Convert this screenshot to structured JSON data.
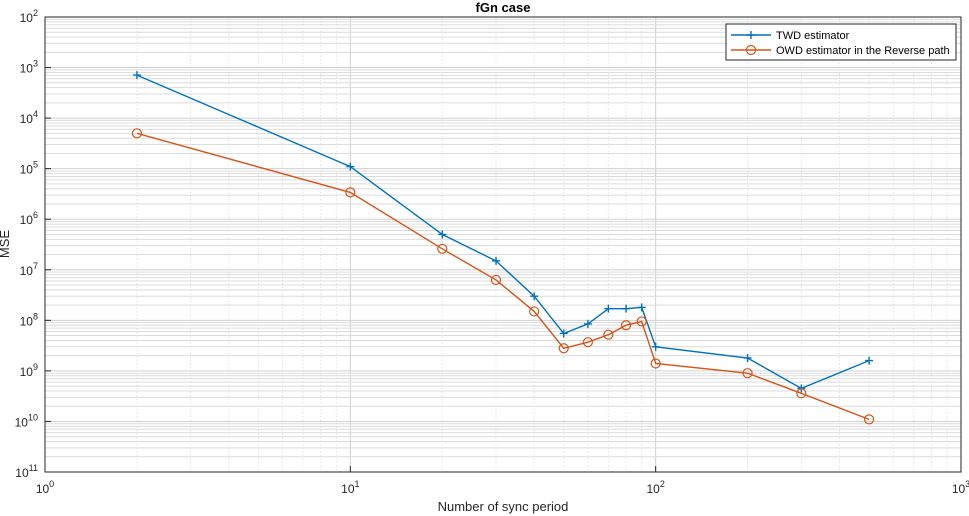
{
  "chart_data": {
    "type": "line",
    "title": "fGn case",
    "xlabel": "Number of sync period",
    "ylabel": "MSE",
    "x_scale": "log",
    "y_scale": "log",
    "y_reversed": true,
    "xlim": [
      1,
      1000
    ],
    "ylim": [
      1e-11,
      0.01
    ],
    "grid": true,
    "legend_position": "top-right",
    "x_ticks": [
      {
        "base": "10",
        "exp": "0"
      },
      {
        "base": "10",
        "exp": "1"
      },
      {
        "base": "10",
        "exp": "2"
      },
      {
        "base": "10",
        "exp": "3"
      }
    ],
    "y_ticks": [
      {
        "base": "10",
        "exp": "2"
      },
      {
        "base": "10",
        "exp": "3"
      },
      {
        "base": "10",
        "exp": "4"
      },
      {
        "base": "10",
        "exp": "5"
      },
      {
        "base": "10",
        "exp": "6"
      },
      {
        "base": "10",
        "exp": "7"
      },
      {
        "base": "10",
        "exp": "8"
      },
      {
        "base": "10",
        "exp": "9"
      },
      {
        "base": "10",
        "exp": "10"
      },
      {
        "base": "10",
        "exp": "11"
      }
    ],
    "series": [
      {
        "name": "TWD estimator",
        "color": "#0072BD",
        "marker": "plus",
        "x": [
          2,
          10,
          20,
          30,
          40,
          50,
          60,
          70,
          80,
          90,
          100,
          200,
          300,
          500
        ],
        "y": [
          0.00071,
          1.1e-05,
          5e-07,
          1.5e-07,
          3e-08,
          5.5e-09,
          8.5e-09,
          1.7e-08,
          1.7e-08,
          1.8e-08,
          3e-09,
          1.8e-09,
          4.5e-10,
          1.6e-09
        ]
      },
      {
        "name": "OWD estimator in the Reverse path",
        "color": "#D95319",
        "marker": "circle",
        "x": [
          2,
          10,
          20,
          30,
          40,
          50,
          60,
          70,
          80,
          90,
          100,
          200,
          300,
          500
        ],
        "y": [
          5e-05,
          3.4e-06,
          2.6e-07,
          6.3e-08,
          1.5e-08,
          2.8e-09,
          3.7e-09,
          5.2e-09,
          8e-09,
          9.5e-09,
          1.4e-09,
          9e-10,
          3.6e-10,
          1.1e-10
        ]
      }
    ]
  }
}
